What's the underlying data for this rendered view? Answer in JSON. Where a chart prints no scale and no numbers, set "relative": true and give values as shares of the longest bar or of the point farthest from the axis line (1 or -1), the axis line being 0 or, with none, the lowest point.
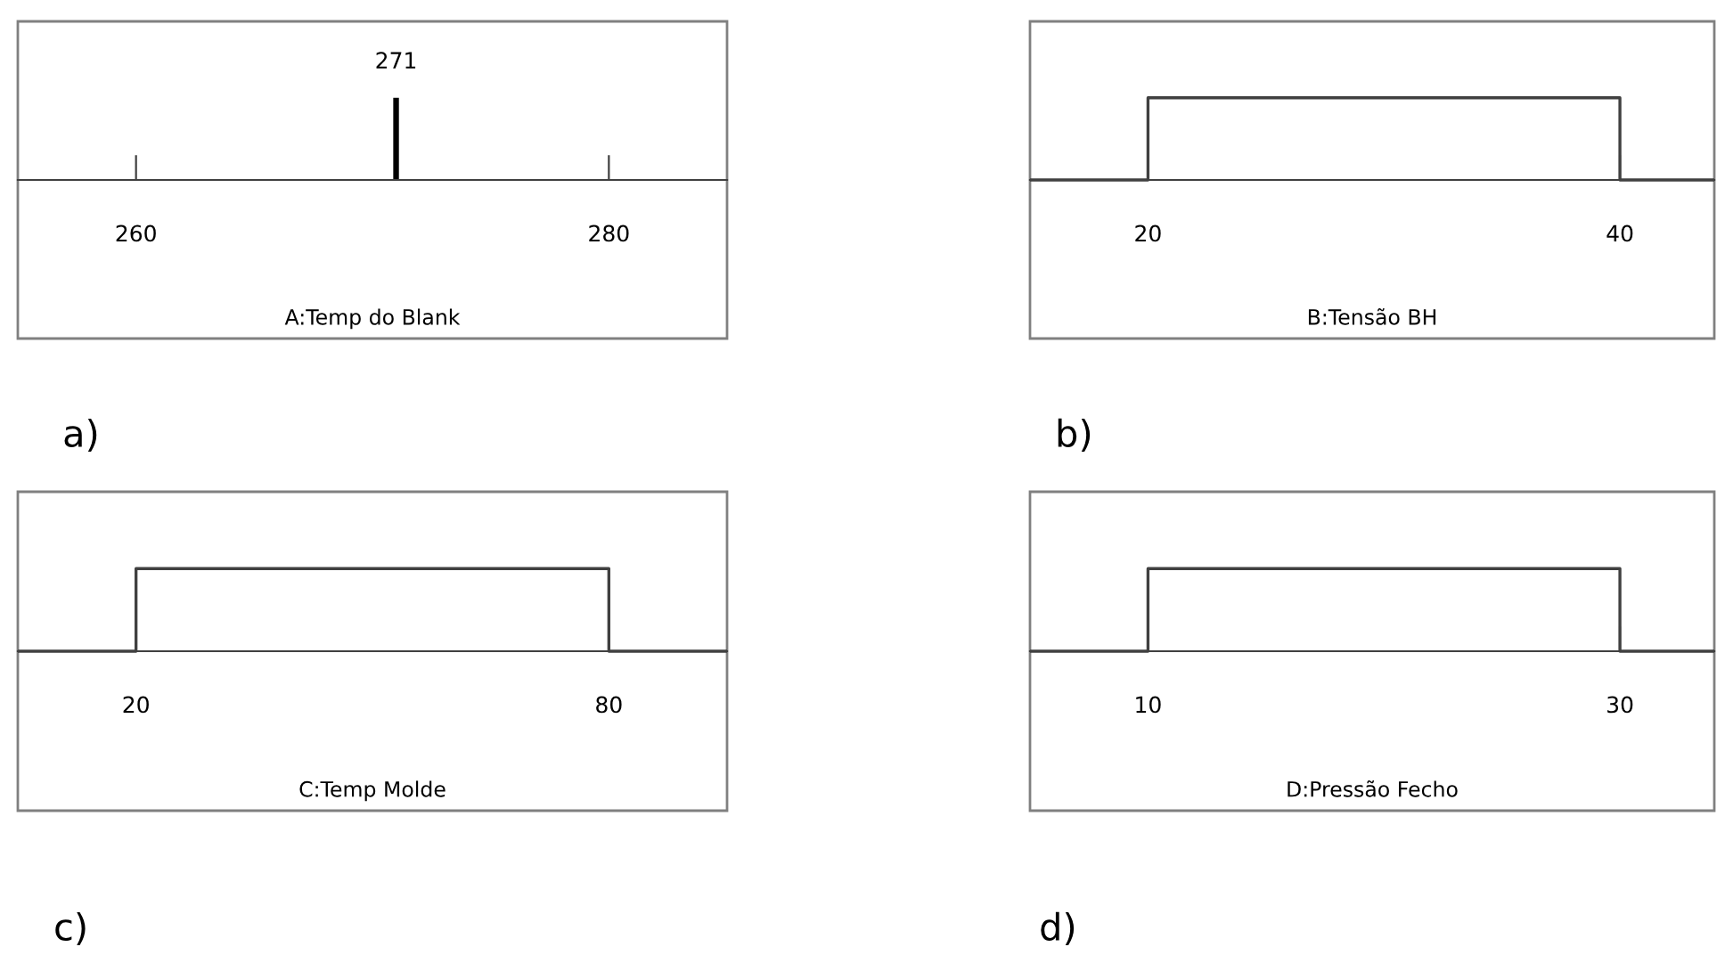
{
  "chart_data": [
    {
      "type": "bar",
      "relative": true,
      "x": [
        271
      ],
      "values": [
        1
      ],
      "color": "#000000",
      "xlim": [
        255,
        285
      ],
      "xticks": [
        260,
        280
      ],
      "xlabel": "A:Temp do Blank",
      "annotations": [
        {
          "text": "271",
          "x": 271,
          "y": 1
        },
        "a)"
      ]
    },
    {
      "type": "step",
      "relative": true,
      "x": [
        15,
        20,
        40,
        44
      ],
      "values": [
        0,
        1,
        0,
        0
      ],
      "color": "#404040",
      "xlim": [
        15,
        44
      ],
      "xticks": [
        20,
        40
      ],
      "xlabel": "B:Tensão BH",
      "annotations": [
        "b)"
      ]
    },
    {
      "type": "step",
      "relative": true,
      "x": [
        5,
        20,
        80,
        95
      ],
      "values": [
        0,
        1,
        0,
        0
      ],
      "color": "#404040",
      "xlim": [
        5,
        95
      ],
      "xticks": [
        20,
        80
      ],
      "xlabel": "C:Temp Molde",
      "annotations": [
        "c)"
      ]
    },
    {
      "type": "step",
      "relative": true,
      "x": [
        5,
        10,
        30,
        34
      ],
      "values": [
        0,
        1,
        0,
        0
      ],
      "color": "#404040",
      "xlim": [
        5,
        34
      ],
      "xticks": [
        10,
        30
      ],
      "xlabel": "D:Pressão Fecho",
      "annotations": [
        "d)"
      ]
    }
  ]
}
